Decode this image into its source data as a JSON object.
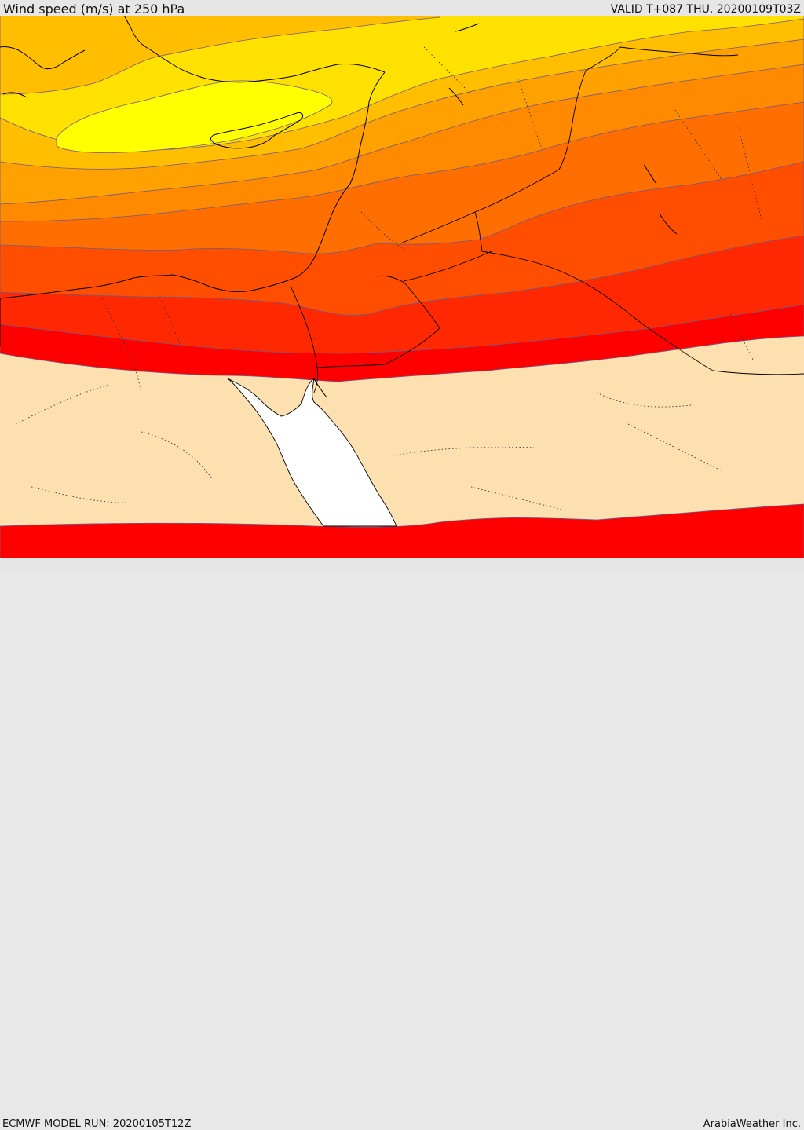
{
  "header": {
    "title": "Wind speed (m/s) at 250 hPa",
    "valid_time": "VALID T+087 THU. 20200109T03Z"
  },
  "footer": {
    "model_run": "ECMWF MODEL RUN: 20200105T12Z",
    "credit": "ArabiaWeather Inc."
  },
  "map": {
    "field": "wind speed",
    "level_hpa": 250,
    "colors": {
      "max_band": "#ffff00",
      "band_yellow": "#ffe100",
      "band_gold": "#ffbf00",
      "band_amber": "#ffa100",
      "band_orange": "#ff8a00",
      "band_dark_orange": "#ff6e00",
      "band_red_orange": "#ff4e00",
      "band_red": "#ff2800",
      "band_core": "#ff0000",
      "below_threshold": "#fde0b0",
      "sea_masked": "#ffffff",
      "contour_line": "#6e5a8a",
      "coastline": "#000000",
      "border": "#000000"
    }
  }
}
